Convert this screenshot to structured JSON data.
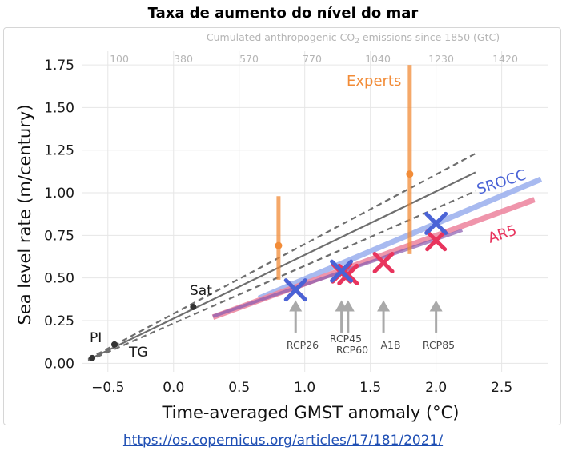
{
  "page": {
    "title": "Taxa de aumento do nível do mar",
    "source_url": "https://os.copernicus.org/articles/17/181/2021/"
  },
  "chart_data": {
    "type": "scatter",
    "top_axis_label": "Cumulated anthropogenic CO₂ emissions since 1850 (GtC)",
    "top_ticks": [
      "100",
      "380",
      "570",
      "770",
      "1040",
      "1230",
      "1420"
    ],
    "xlabel": "Time-averaged GMST anomaly (°C)",
    "ylabel": "Sea level rate (m/century)",
    "xlim": [
      -0.7,
      2.85
    ],
    "ylim": [
      -0.05,
      1.83
    ],
    "x_ticks": [
      -0.5,
      0.0,
      0.5,
      1.0,
      1.5,
      2.0,
      2.5
    ],
    "x_tick_labels": [
      "−0.5",
      "0.0",
      "0.5",
      "1.0",
      "1.5",
      "2.0",
      "2.5"
    ],
    "y_ticks": [
      0.0,
      0.25,
      0.5,
      0.75,
      1.0,
      1.25,
      1.5,
      1.75
    ],
    "y_tick_labels": [
      "0.00",
      "0.25",
      "0.50",
      "0.75",
      "1.00",
      "1.25",
      "1.50",
      "1.75"
    ],
    "grid": true,
    "observations": [
      {
        "label": "PI",
        "x": -0.62,
        "y": 0.03
      },
      {
        "label": "TG",
        "x": -0.45,
        "y": 0.11
      },
      {
        "label": "Sat",
        "x": 0.15,
        "y": 0.33
      }
    ],
    "observed_fit": {
      "central": [
        [
          -0.65,
          0.02
        ],
        [
          2.3,
          1.12
        ]
      ],
      "upper": [
        [
          -0.65,
          0.025
        ],
        [
          2.3,
          1.23
        ]
      ],
      "lower": [
        [
          -0.65,
          0.015
        ],
        [
          2.3,
          1.01
        ]
      ]
    },
    "experts": {
      "label": "Experts",
      "points": [
        {
          "x": 0.8,
          "y": 0.69,
          "low": 0.49,
          "high": 0.98
        },
        {
          "x": 1.8,
          "y": 1.11,
          "low": 0.64,
          "high": 1.75
        }
      ]
    },
    "ar5": {
      "label": "AR5",
      "band": [
        [
          0.3,
          0.27
        ],
        [
          2.75,
          0.96
        ]
      ],
      "points": [
        {
          "scenario": "RCP26",
          "x": 0.93,
          "y": 0.43
        },
        {
          "scenario": "RCP45",
          "x": 1.28,
          "y": 0.53
        },
        {
          "scenario": "RCP60",
          "x": 1.33,
          "y": 0.52
        },
        {
          "scenario": "A1B",
          "x": 1.6,
          "y": 0.59
        },
        {
          "scenario": "RCP85",
          "x": 2.0,
          "y": 0.72
        }
      ]
    },
    "srocc": {
      "label": "SROCC",
      "band": [
        [
          0.65,
          0.38
        ],
        [
          2.8,
          1.08
        ]
      ],
      "points": [
        {
          "scenario": "RCP26",
          "x": 0.93,
          "y": 0.43
        },
        {
          "scenario": "RCP45",
          "x": 1.28,
          "y": 0.54
        },
        {
          "scenario": "RCP85",
          "x": 2.0,
          "y": 0.82
        }
      ]
    },
    "scenario_arrows": [
      {
        "label": "RCP26",
        "x": 0.93
      },
      {
        "label": "RCP45",
        "x": 1.28
      },
      {
        "label": "RCP60",
        "x": 1.33
      },
      {
        "label": "A1B",
        "x": 1.6
      },
      {
        "label": "RCP85",
        "x": 2.0
      }
    ],
    "colors": {
      "observed": "#333333",
      "fit": "#6e6e6e",
      "experts": "#f28c38",
      "ar5": "#e8345d",
      "ar5_band": "#ee8aa2",
      "srocc": "#4a63d6",
      "srocc_band": "#9fb3ef",
      "overlap": "#8a5bb0",
      "arrow": "#a9a9a9",
      "grid": "#e6e6e6",
      "top_axis": "#b5b5b5"
    }
  }
}
